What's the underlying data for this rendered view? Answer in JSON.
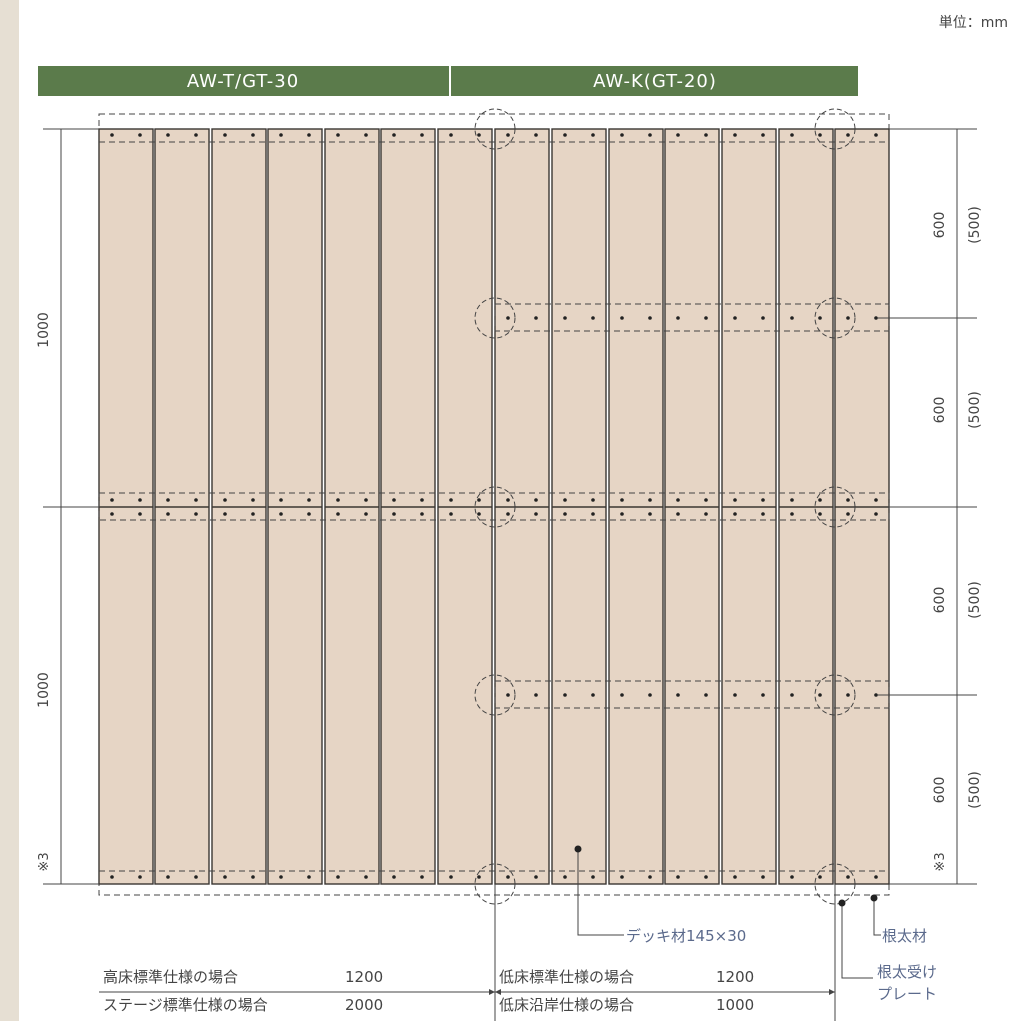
{
  "unit_label": "単位：mm",
  "headers": {
    "left": "AW-T/GT-30",
    "right": "AW-K(GT-20)",
    "color": "#5b7b4b"
  },
  "dimensions": {
    "left_top": "1000",
    "left_bottom": "1000",
    "left_note": "※3",
    "right_note": "※3",
    "right_values": [
      "600",
      "600",
      "600",
      "600"
    ],
    "right_values_alt": [
      "(500)",
      "(500)",
      "(500)",
      "(500)"
    ]
  },
  "callouts": {
    "deck": "デッキ材145×30",
    "joist": "根太材",
    "plate_line1": "根太受け",
    "plate_line2": "プレート"
  },
  "spec_table": {
    "rows": [
      {
        "left_label": "高床標準仕様の場合",
        "left_value": "1200",
        "right_label": "低床標準仕様の場合",
        "right_value": "1200"
      },
      {
        "left_label": "ステージ標準仕様の場合",
        "left_value": "2000",
        "right_label": "低床沿岸仕様の場合",
        "right_value": "1000"
      }
    ]
  },
  "colors": {
    "board": "#e6d5c5",
    "board_edge": "#3a3632",
    "line": "#444444",
    "callout_text": "#5b6a8c"
  }
}
